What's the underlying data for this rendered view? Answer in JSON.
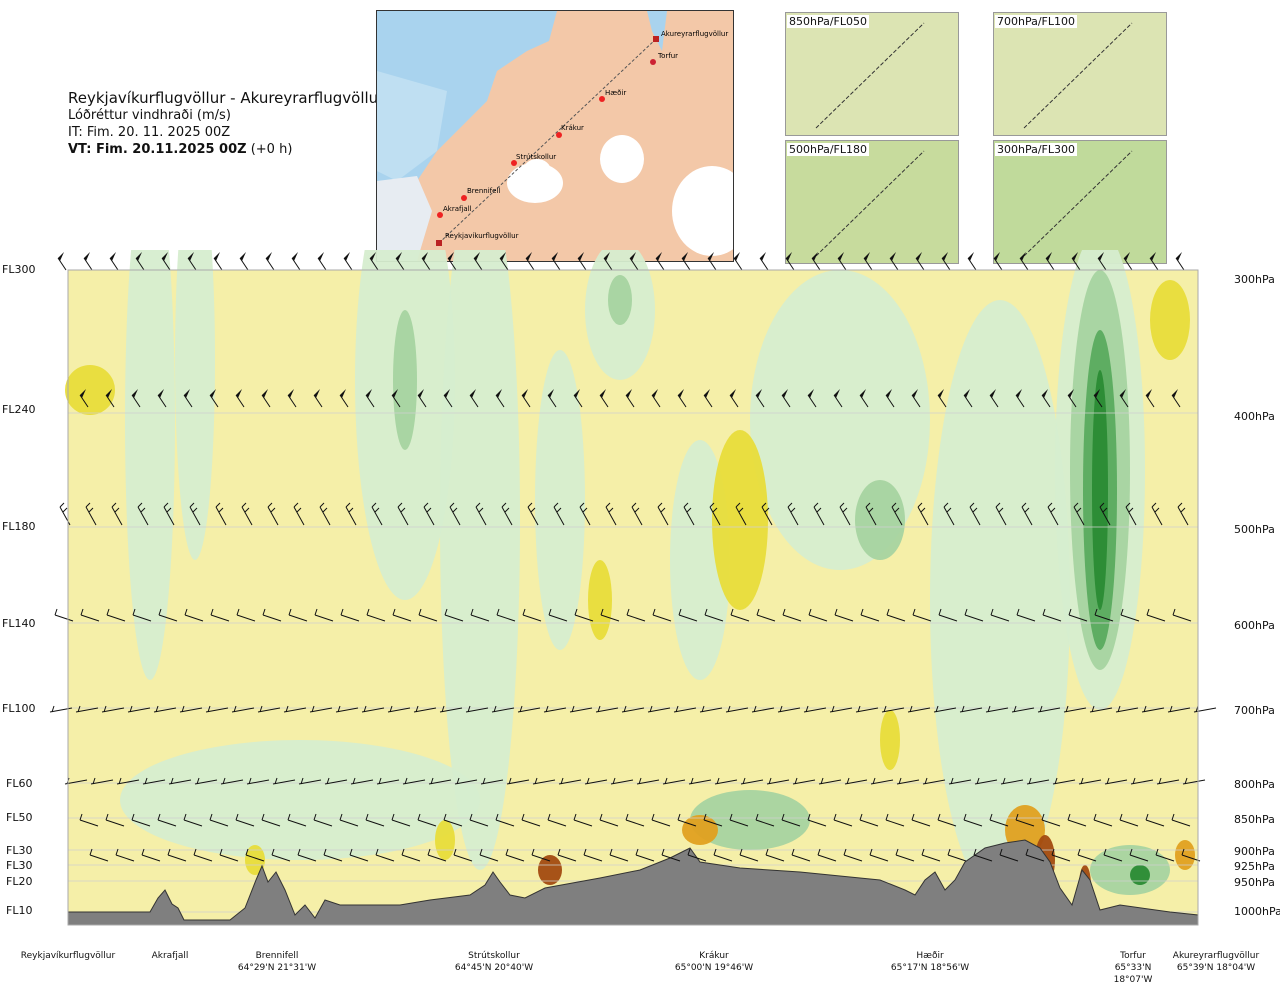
{
  "header": {
    "route": "Reykjavíkurflugvöllur - Akureyrarflugvöllur",
    "variable": "Lóðréttur vindhraði (m/s)",
    "issue_time": "IT: Fim. 20. 11. 2025 00Z",
    "valid_prefix": "VT: Fim. 20.11.2025 00Z",
    "valid_suffix": "(+0 h)"
  },
  "map": {
    "points": [
      {
        "name": "Akureyrarflugvöllur"
      },
      {
        "name": "Torfur"
      },
      {
        "name": "Hæðir"
      },
      {
        "name": "Krákur"
      },
      {
        "name": "Strútskollur"
      },
      {
        "name": "Brennifell"
      },
      {
        "name": "Akrafjall"
      },
      {
        "name": "Reykjavíkurflugvöllur"
      }
    ]
  },
  "thumbnails": [
    {
      "label": "850hPa/FL050"
    },
    {
      "label": "700hPa/FL100"
    },
    {
      "label": "500hPa/FL180"
    },
    {
      "label": "300hPa/FL300"
    }
  ],
  "chart_data": {
    "type": "heatmap",
    "title": "Lóðréttur vindhraði (m/s)",
    "y_left_labels": [
      "FL300",
      "FL240",
      "FL180",
      "FL140",
      "FL100",
      "FL60",
      "FL50",
      "FL30",
      "FL30",
      "FL20",
      "FL10"
    ],
    "y_right_labels": [
      "300hPa",
      "400hPa",
      "500hPa",
      "600hPa",
      "700hPa",
      "800hPa",
      "850hPa",
      "900hPa",
      "925hPa",
      "950hPa",
      "1000hPa"
    ],
    "pressure_levels_hpa": [
      300,
      400,
      500,
      600,
      700,
      800,
      850,
      900,
      925,
      950,
      1000
    ],
    "x_locations": [
      {
        "name": "Reykjavíkurflugvöllur",
        "coord": ""
      },
      {
        "name": "Akrafjall",
        "coord": ""
      },
      {
        "name": "Brennifell",
        "coord": "64°29'N 21°31'W"
      },
      {
        "name": "Strútskollur",
        "coord": "64°45'N 20°40'W"
      },
      {
        "name": "Krákur",
        "coord": "65°00'N 19°46'W"
      },
      {
        "name": "Hæðir",
        "coord": "65°17'N 18°56'W"
      },
      {
        "name": "Torfur",
        "coord": "65°33'N 18°07'W"
      },
      {
        "name": "Akureyrarflugvöllur",
        "coord": "65°39'N 18°04'W"
      }
    ],
    "legend": {
      "ascent": "green",
      "descent": "yellow-orange-brown",
      "terrain": "grey"
    },
    "colors": {
      "up_weak": "#d6edcf",
      "up_mod": "#a6d3a0",
      "up_strong": "#5aab5f",
      "up_max": "#2a8b34",
      "down_weak": "#f5efa8",
      "down_mod": "#e8dc3a",
      "down_strong": "#e0a020",
      "down_max": "#a24a10",
      "terrain": "#7f7f7f"
    }
  }
}
